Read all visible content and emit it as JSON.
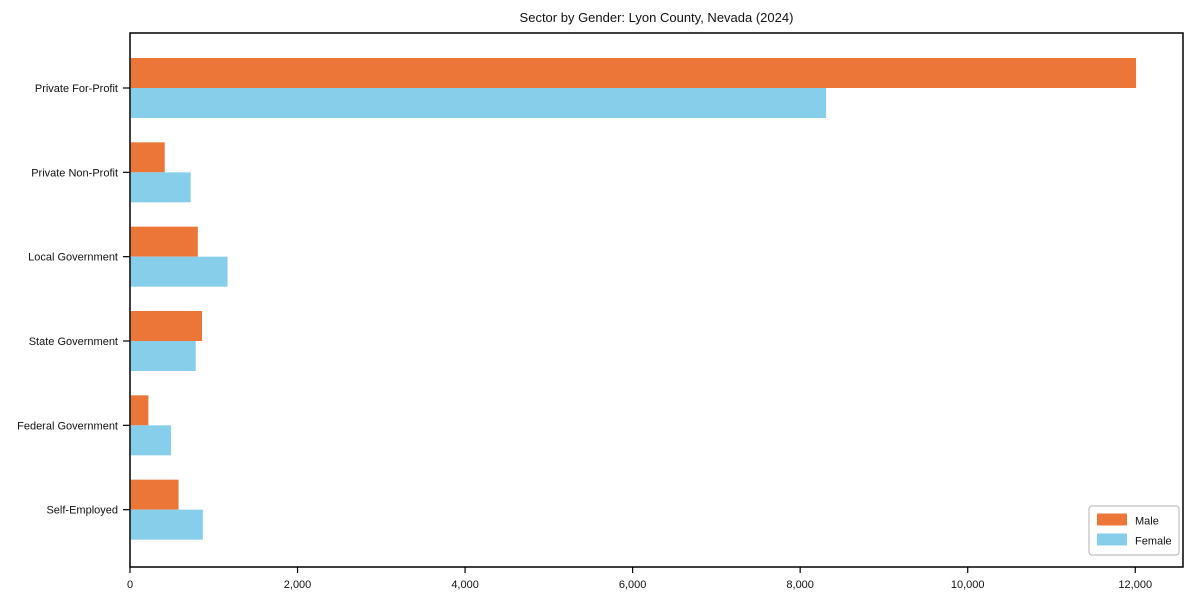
{
  "chart_data": {
    "type": "bar",
    "orientation": "horizontal",
    "title": "Sector by Gender: Lyon County, Nevada (2024)",
    "categories": [
      "Private For-Profit",
      "Private Non-Profit",
      "Local Government",
      "State Government",
      "Federal Government",
      "Self-Employed"
    ],
    "series": [
      {
        "name": "Male",
        "color": "#EC7638",
        "values": [
          12000,
          405,
          800,
          850,
          210,
          570
        ]
      },
      {
        "name": "Female",
        "color": "#87CEEB",
        "values": [
          8300,
          715,
          1155,
          775,
          480,
          860
        ]
      }
    ],
    "xlabel": "",
    "ylabel": "",
    "xlim": [
      0,
      12570
    ],
    "xticks": [
      0,
      2000,
      4000,
      6000,
      8000,
      10000,
      12000
    ],
    "xtick_labels": [
      "0",
      "2,000",
      "4,000",
      "6,000",
      "8,000",
      "10,000",
      "12,000"
    ],
    "grid": false,
    "legend": {
      "position": "lower-right",
      "entries": [
        {
          "label": "Male",
          "color": "#EC7638"
        },
        {
          "label": "Female",
          "color": "#87CEEB"
        }
      ]
    },
    "frame_color": "#000000",
    "tick_label_color": "#111111"
  }
}
